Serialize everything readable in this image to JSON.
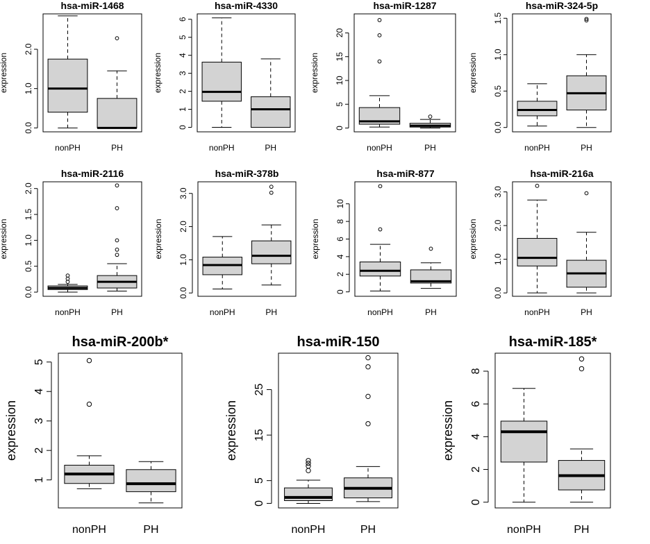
{
  "chart_data": [
    {
      "type": "boxplot",
      "title": "hsa-miR-1468",
      "ylabel": "expression",
      "ylim": [
        -0.1,
        2.9
      ],
      "yticks": [
        0.0,
        1.0,
        2.0
      ],
      "ytick_labels": [
        "0.0",
        "1.0",
        "2.0"
      ],
      "categories": [
        "nonPH",
        "PH"
      ],
      "boxes": [
        {
          "min": 0.0,
          "q1": 0.4,
          "median": 1.0,
          "q3": 1.75,
          "max": 2.85,
          "outliers": []
        },
        {
          "min": 0.0,
          "q1": 0.0,
          "median": 0.0,
          "q3": 0.75,
          "max": 1.45,
          "outliers": [
            2.28
          ]
        }
      ]
    },
    {
      "type": "boxplot",
      "title": "hsa-miR-4330",
      "ylabel": "expression",
      "ylim": [
        -0.25,
        6.3
      ],
      "yticks": [
        0,
        1,
        2,
        3,
        4,
        5,
        6
      ],
      "ytick_labels": [
        "0",
        "1",
        "2",
        "3",
        "4",
        "5",
        "6"
      ],
      "categories": [
        "nonPH",
        "PH"
      ],
      "boxes": [
        {
          "min": 0.0,
          "q1": 1.45,
          "median": 1.97,
          "q3": 3.62,
          "max": 6.08,
          "outliers": []
        },
        {
          "min": 0.0,
          "q1": 0.0,
          "median": 1.0,
          "q3": 1.7,
          "max": 3.8,
          "outliers": []
        }
      ]
    },
    {
      "type": "boxplot",
      "title": "hsa-miR-1287",
      "ylabel": "expression",
      "ylim": [
        -0.8,
        24.0
      ],
      "yticks": [
        0,
        5,
        10,
        15,
        20
      ],
      "ytick_labels": [
        "0",
        "5",
        "10",
        "15",
        "20"
      ],
      "categories": [
        "nonPH",
        "PH"
      ],
      "boxes": [
        {
          "min": 0.2,
          "q1": 0.8,
          "median": 1.4,
          "q3": 4.3,
          "max": 6.8,
          "outliers": [
            14.0,
            19.5,
            22.7
          ]
        },
        {
          "min": 0.0,
          "q1": 0.2,
          "median": 0.5,
          "q3": 1.0,
          "max": 1.8,
          "outliers": [
            2.4
          ]
        }
      ]
    },
    {
      "type": "boxplot",
      "title": "hsa-miR-324-5p",
      "ylabel": "expression",
      "ylim": [
        -0.06,
        1.56
      ],
      "yticks": [
        0.0,
        0.5,
        1.0,
        1.5
      ],
      "ytick_labels": [
        "0.0",
        "0.5",
        "1.0",
        "1.5"
      ],
      "categories": [
        "nonPH",
        "PH"
      ],
      "boxes": [
        {
          "min": 0.02,
          "q1": 0.16,
          "median": 0.24,
          "q3": 0.36,
          "max": 0.6,
          "outliers": []
        },
        {
          "min": 0.0,
          "q1": 0.24,
          "median": 0.47,
          "q3": 0.71,
          "max": 1.0,
          "outliers": [
            1.47,
            1.49
          ]
        }
      ]
    },
    {
      "type": "boxplot",
      "title": "hsa-miR-2116",
      "ylabel": "expression",
      "ylim": [
        -0.08,
        2.13
      ],
      "yticks": [
        0.0,
        0.5,
        1.0,
        1.5,
        2.0
      ],
      "ytick_labels": [
        "0.0",
        "0.5",
        "1.0",
        "1.5",
        "2.0"
      ],
      "categories": [
        "nonPH",
        "PH"
      ],
      "boxes": [
        {
          "min": 0.0,
          "q1": 0.05,
          "median": 0.08,
          "q3": 0.12,
          "max": 0.15,
          "outliers": [
            0.2,
            0.26,
            0.32
          ]
        },
        {
          "min": 0.02,
          "q1": 0.08,
          "median": 0.2,
          "q3": 0.32,
          "max": 0.55,
          "outliers": [
            0.72,
            0.82,
            1.0,
            1.62,
            2.06
          ]
        }
      ]
    },
    {
      "type": "boxplot",
      "title": "hsa-miR-378b",
      "ylabel": "expression",
      "ylim": [
        -0.1,
        3.35
      ],
      "yticks": [
        0.0,
        1.0,
        2.0,
        3.0
      ],
      "ytick_labels": [
        "0.0",
        "1.0",
        "2.0",
        "3.0"
      ],
      "categories": [
        "nonPH",
        "PH"
      ],
      "boxes": [
        {
          "min": 0.12,
          "q1": 0.55,
          "median": 0.84,
          "q3": 1.08,
          "max": 1.7,
          "outliers": []
        },
        {
          "min": 0.24,
          "q1": 0.88,
          "median": 1.12,
          "q3": 1.57,
          "max": 2.05,
          "outliers": [
            3.02,
            3.2
          ]
        }
      ]
    },
    {
      "type": "boxplot",
      "title": "hsa-miR-877",
      "ylabel": "expression",
      "ylim": [
        -0.5,
        12.5
      ],
      "yticks": [
        0,
        2,
        4,
        6,
        8,
        10
      ],
      "ytick_labels": [
        "0",
        "2",
        "4",
        "6",
        "8",
        "10"
      ],
      "categories": [
        "nonPH",
        "PH"
      ],
      "boxes": [
        {
          "min": 0.1,
          "q1": 1.8,
          "median": 2.4,
          "q3": 3.4,
          "max": 5.4,
          "outliers": [
            7.1,
            12.0
          ]
        },
        {
          "min": 0.4,
          "q1": 1.0,
          "median": 1.2,
          "q3": 2.5,
          "max": 3.3,
          "outliers": [
            4.9
          ]
        }
      ]
    },
    {
      "type": "boxplot",
      "title": "hsa-miR-216a",
      "ylabel": "expression",
      "ylim": [
        -0.1,
        3.3
      ],
      "yticks": [
        0.0,
        1.0,
        2.0,
        3.0
      ],
      "ytick_labels": [
        "0.0",
        "1.0",
        "2.0",
        "3.0"
      ],
      "categories": [
        "nonPH",
        "PH"
      ],
      "boxes": [
        {
          "min": 0.0,
          "q1": 0.8,
          "median": 1.04,
          "q3": 1.62,
          "max": 2.76,
          "outliers": [
            3.18
          ]
        },
        {
          "min": 0.0,
          "q1": 0.17,
          "median": 0.58,
          "q3": 0.97,
          "max": 1.8,
          "outliers": [
            2.96
          ]
        }
      ]
    },
    {
      "type": "boxplot",
      "title": "hsa-miR-200b*",
      "ylabel": "expression",
      "ylim": [
        0.05,
        5.3
      ],
      "yticks": [
        1,
        2,
        3,
        4,
        5
      ],
      "ytick_labels": [
        "1",
        "2",
        "3",
        "4",
        "5"
      ],
      "categories": [
        "nonPH",
        "PH"
      ],
      "boxes": [
        {
          "min": 0.7,
          "q1": 0.88,
          "median": 1.2,
          "q3": 1.5,
          "max": 1.82,
          "outliers": [
            3.57,
            5.05
          ]
        },
        {
          "min": 0.22,
          "q1": 0.6,
          "median": 0.87,
          "q3": 1.35,
          "max": 1.62,
          "outliers": []
        }
      ]
    },
    {
      "type": "boxplot",
      "title": "hsa-miR-150",
      "ylabel": "expression",
      "ylim": [
        -1.0,
        33.0
      ],
      "yticks": [
        0,
        5,
        15,
        25
      ],
      "ytick_labels": [
        "0",
        "5",
        "15",
        "25"
      ],
      "categories": [
        "nonPH",
        "PH"
      ],
      "boxes": [
        {
          "min": 0.0,
          "q1": 0.6,
          "median": 1.3,
          "q3": 3.4,
          "max": 5.1,
          "outliers": [
            7.2,
            8.2,
            8.8,
            9.4
          ]
        },
        {
          "min": 0.4,
          "q1": 1.2,
          "median": 3.3,
          "q3": 5.6,
          "max": 8.1,
          "outliers": [
            17.5,
            23.5,
            30.0,
            32.0
          ]
        }
      ]
    },
    {
      "type": "boxplot",
      "title": "hsa-miR-185*",
      "ylabel": "expression",
      "ylim": [
        -0.35,
        9.1
      ],
      "yticks": [
        0,
        2,
        4,
        6,
        8
      ],
      "ytick_labels": [
        "0",
        "2",
        "4",
        "6",
        "8"
      ],
      "categories": [
        "nonPH",
        "PH"
      ],
      "boxes": [
        {
          "min": 0.0,
          "q1": 2.45,
          "median": 4.3,
          "q3": 4.95,
          "max": 6.95,
          "outliers": []
        },
        {
          "min": 0.0,
          "q1": 0.75,
          "median": 1.62,
          "q3": 2.55,
          "max": 3.25,
          "outliers": [
            8.15,
            8.75
          ]
        }
      ]
    }
  ]
}
